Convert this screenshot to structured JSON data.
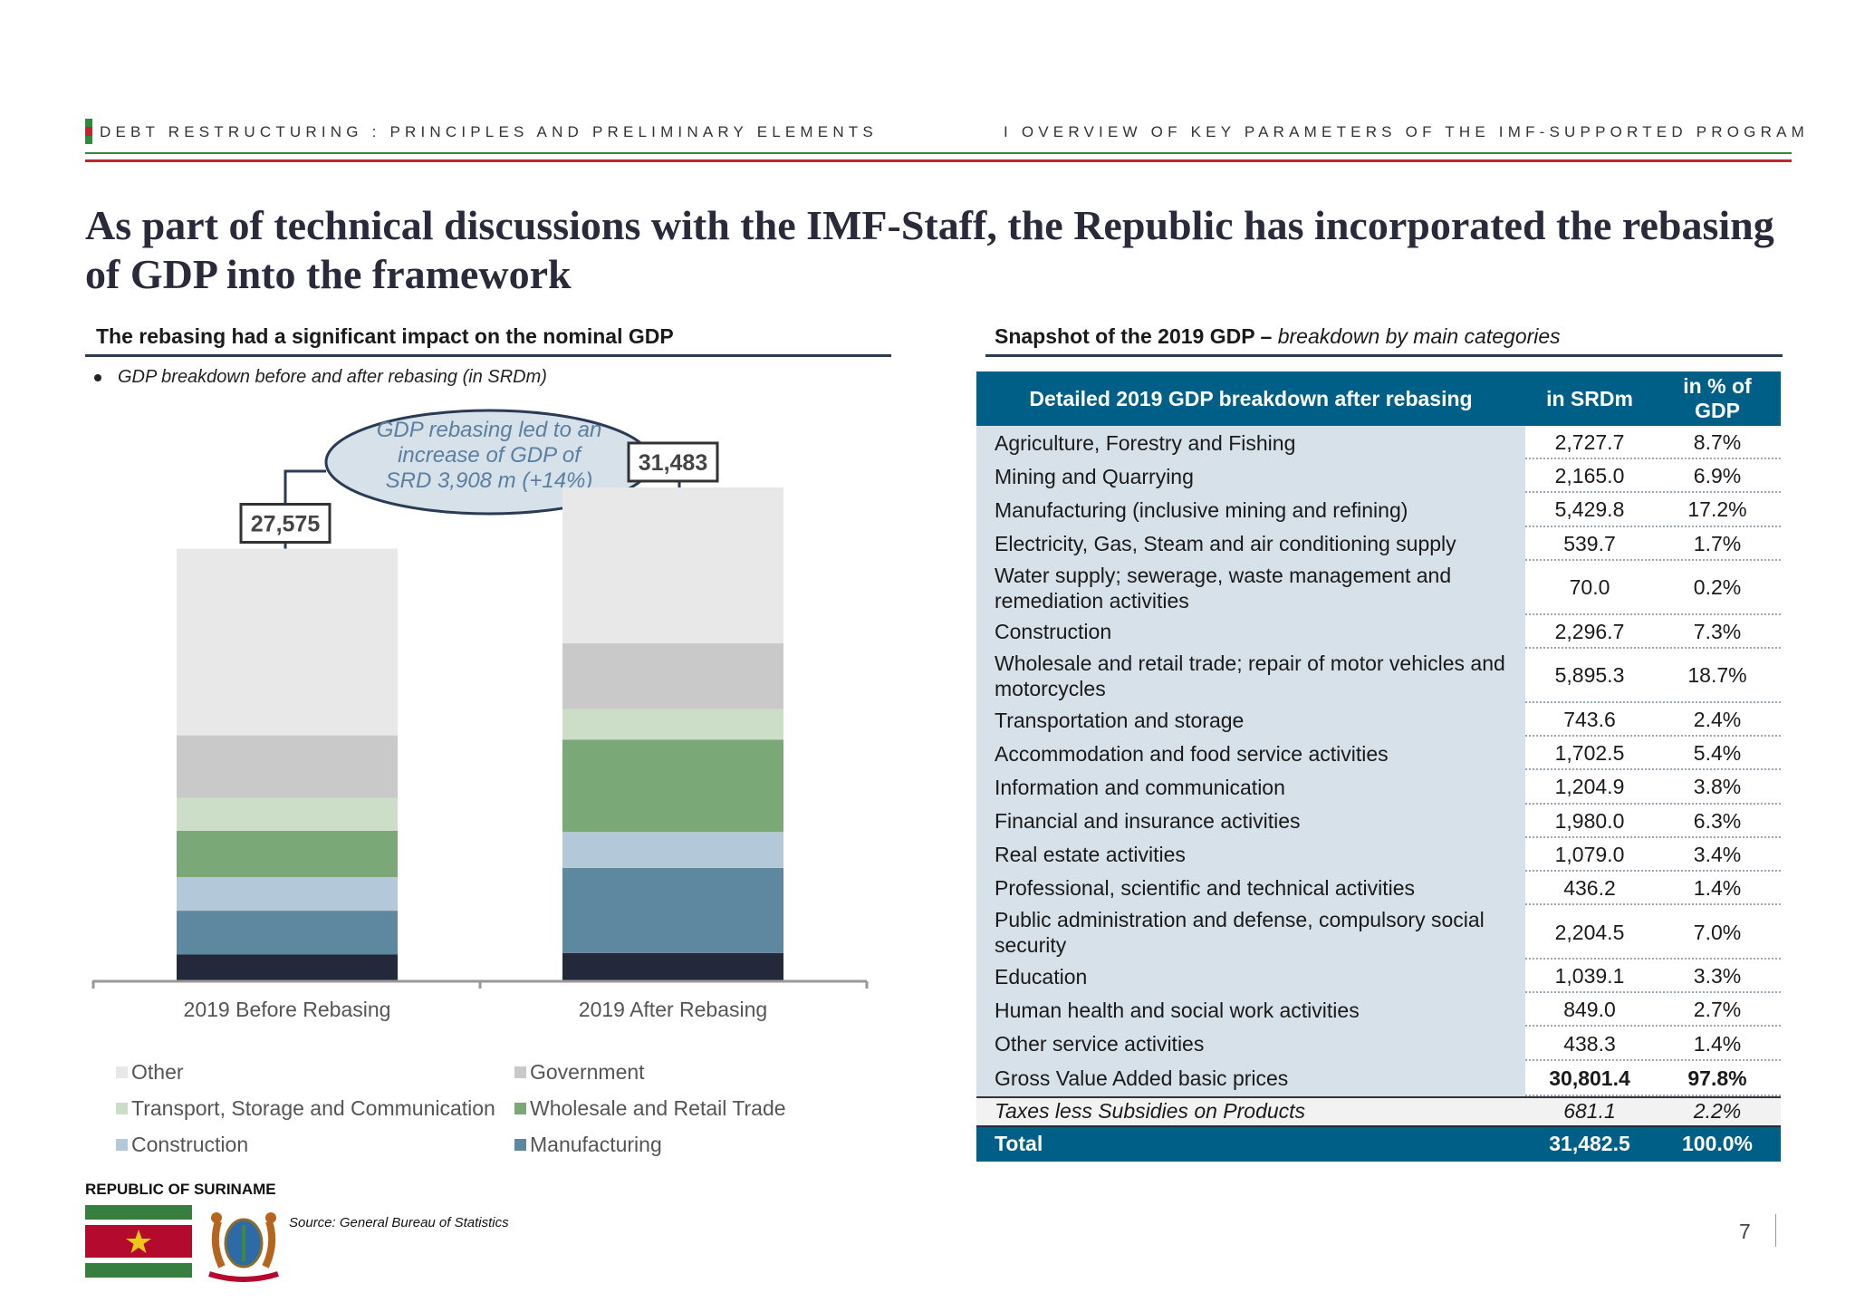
{
  "header": {
    "left": "DEBT RESTRUCTURING : PRINCIPLES AND PRELIMINARY ELEMENTS",
    "right": "I   OVERVIEW OF KEY PARAMETERS OF THE IMF-SUPPORTED PROGRAM"
  },
  "title": "As part of technical discussions with the IMF-Staff, the Republic has incorporated the rebasing of GDP into the framework",
  "left_section": {
    "heading": "The rebasing had a significant impact on the nominal GDP",
    "bullet": "GDP breakdown before and after rebasing (in SRDm)",
    "callout": [
      "GDP rebasing led to an",
      "increase of GDP of",
      "SRD 3,908 m (+14%)"
    ]
  },
  "chart_data": {
    "type": "bar",
    "stacked": true,
    "categories": [
      "2019 Before Rebasing",
      "2019 After Rebasing"
    ],
    "totals": [
      27575,
      31483
    ],
    "total_labels": [
      "27,575",
      "31,483"
    ],
    "series": [
      {
        "name": "",
        "color": "#23283a",
        "values": [
          1650,
          1750
        ]
      },
      {
        "name": "Manufacturing",
        "color": "#5e87a0",
        "values": [
          2800,
          5430
        ]
      },
      {
        "name": "Construction",
        "color": "#b3c9da",
        "values": [
          2150,
          2300
        ]
      },
      {
        "name": "Wholesale and Retail Trade",
        "color": "#7aa877",
        "values": [
          2950,
          5900
        ]
      },
      {
        "name": "Transport, Storage and Communication",
        "color": "#ccdec8",
        "values": [
          2100,
          1950
        ]
      },
      {
        "name": "Government",
        "color": "#c9c9c9",
        "values": [
          4000,
          4200
        ]
      },
      {
        "name": "Other",
        "color": "#e8e8e8",
        "values": [
          11925,
          9953
        ]
      }
    ],
    "legend": [
      {
        "name": "Other",
        "color": "#e8e8e8"
      },
      {
        "name": "Government",
        "color": "#c9c9c9"
      },
      {
        "name": "Transport, Storage and Communication",
        "color": "#ccdec8"
      },
      {
        "name": "Wholesale and Retail Trade",
        "color": "#7aa877"
      },
      {
        "name": "Construction",
        "color": "#b3c9da"
      },
      {
        "name": "Manufacturing",
        "color": "#5e87a0"
      }
    ]
  },
  "right_section": {
    "heading": "Snapshot of the 2019 GDP – ",
    "heading_italic": "breakdown by main categories",
    "table": {
      "headers": [
        "Detailed 2019 GDP breakdown after rebasing",
        "in SRDm",
        "in % of GDP"
      ],
      "rows": [
        {
          "label": "Agriculture, Forestry and Fishing",
          "srd": "2,727.7",
          "pct": "8.7%"
        },
        {
          "label": "Mining and Quarrying",
          "srd": "2,165.0",
          "pct": "6.9%"
        },
        {
          "label": "Manufacturing (inclusive mining and refining)",
          "srd": "5,429.8",
          "pct": "17.2%"
        },
        {
          "label": "Electricity, Gas, Steam and air conditioning supply",
          "srd": "539.7",
          "pct": "1.7%"
        },
        {
          "label": "Water supply; sewerage, waste management and remediation activities",
          "srd": "70.0",
          "pct": "0.2%"
        },
        {
          "label": "Construction",
          "srd": "2,296.7",
          "pct": "7.3%"
        },
        {
          "label": "Wholesale and retail trade; repair of motor vehicles and motorcycles",
          "srd": "5,895.3",
          "pct": "18.7%"
        },
        {
          "label": "Transportation and storage",
          "srd": "743.6",
          "pct": "2.4%"
        },
        {
          "label": "Accommodation and food service activities",
          "srd": "1,702.5",
          "pct": "5.4%"
        },
        {
          "label": "Information and communication",
          "srd": "1,204.9",
          "pct": "3.8%"
        },
        {
          "label": "Financial and insurance activities",
          "srd": "1,980.0",
          "pct": "6.3%"
        },
        {
          "label": "Real estate activities",
          "srd": "1,079.0",
          "pct": "3.4%"
        },
        {
          "label": "Professional, scientific and technical activities",
          "srd": "436.2",
          "pct": "1.4%"
        },
        {
          "label": "Public administration and defense, compulsory social security",
          "srd": "2,204.5",
          "pct": "7.0%"
        },
        {
          "label": "Education",
          "srd": "1,039.1",
          "pct": "3.3%"
        },
        {
          "label": "Human health and social work activities",
          "srd": "849.0",
          "pct": "2.7%"
        },
        {
          "label": "Other service activities",
          "srd": "438.3",
          "pct": "1.4%"
        },
        {
          "label": "Gross Value Added basic prices",
          "srd": "30,801.4",
          "pct": "97.8%"
        }
      ],
      "taxes": {
        "label": "Taxes less Subsidies on Products",
        "srd": "681.1",
        "pct": "2.2%"
      },
      "total": {
        "label": "Total",
        "srd": "31,482.5",
        "pct": "100.0%"
      }
    }
  },
  "footer": {
    "republic": "REPUBLIC OF SURINAME",
    "source": "Source: General Bureau of Statistics",
    "page": "7"
  },
  "colors": {
    "table_header": "#005f87",
    "table_label_bg": "#d6e1ea",
    "rule_green": "#2e8b3d",
    "rule_red": "#c0272d"
  }
}
